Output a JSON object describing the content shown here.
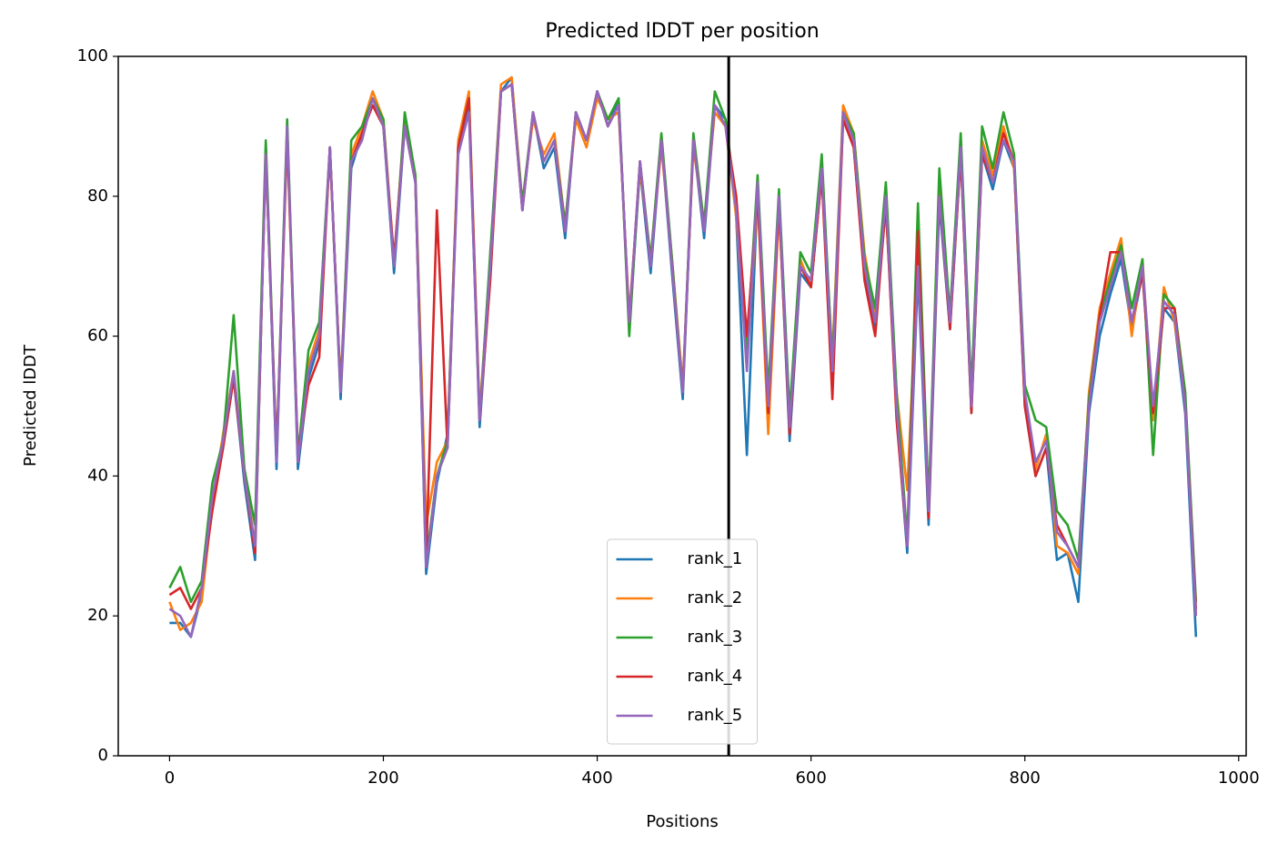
{
  "chart_data": {
    "type": "line",
    "title": "Predicted lDDT per position",
    "xlabel": "Positions",
    "ylabel": "Predicted lDDT",
    "xlim": [
      -48,
      1007
    ],
    "ylim": [
      0,
      100
    ],
    "xticks": [
      0,
      200,
      400,
      600,
      800,
      1000
    ],
    "yticks": [
      0,
      20,
      40,
      60,
      80,
      100
    ],
    "vline": 523,
    "vline_color": "#000000",
    "legend": "lower center",
    "x": [
      0,
      10,
      20,
      30,
      40,
      50,
      60,
      70,
      80,
      90,
      100,
      110,
      120,
      130,
      140,
      150,
      160,
      170,
      180,
      190,
      200,
      210,
      220,
      230,
      240,
      250,
      260,
      270,
      280,
      290,
      300,
      310,
      320,
      330,
      340,
      350,
      360,
      370,
      380,
      390,
      400,
      410,
      420,
      430,
      440,
      450,
      460,
      470,
      480,
      490,
      500,
      510,
      520,
      530,
      540,
      550,
      560,
      570,
      580,
      590,
      600,
      610,
      620,
      630,
      640,
      650,
      660,
      670,
      680,
      690,
      700,
      710,
      720,
      730,
      740,
      750,
      760,
      770,
      780,
      790,
      800,
      810,
      820,
      830,
      840,
      850,
      860,
      870,
      880,
      890,
      900,
      910,
      920,
      930,
      940,
      950,
      960
    ],
    "series": [
      {
        "name": "rank_1",
        "color": "#1f77b4",
        "values": [
          19,
          19,
          17,
          23,
          36,
          44,
          54,
          39,
          28,
          87,
          41,
          90,
          41,
          54,
          59,
          87,
          51,
          84,
          89,
          94,
          90,
          69,
          90,
          82,
          26,
          39,
          46,
          87,
          93,
          47,
          69,
          95,
          97,
          78,
          92,
          84,
          87,
          74,
          92,
          88,
          95,
          90,
          94,
          61,
          84,
          69,
          88,
          69,
          51,
          88,
          74,
          93,
          91,
          77,
          43,
          81,
          48,
          79,
          45,
          69,
          67,
          83,
          54,
          91,
          87,
          69,
          61,
          79,
          49,
          29,
          69,
          33,
          79,
          61,
          86,
          49,
          86,
          81,
          88,
          84,
          50,
          40,
          44,
          28,
          29,
          22,
          49,
          60,
          66,
          71,
          61,
          69,
          48,
          64,
          62,
          49,
          17
        ]
      },
      {
        "name": "rank_2",
        "color": "#ff7f0e",
        "values": [
          22,
          18,
          19,
          22,
          36,
          46,
          55,
          41,
          30,
          86,
          43,
          88,
          43,
          56,
          61,
          86,
          53,
          86,
          90,
          95,
          91,
          71,
          91,
          83,
          33,
          42,
          45,
          88,
          95,
          49,
          71,
          96,
          97,
          79,
          91,
          86,
          89,
          76,
          91,
          87,
          94,
          91,
          92,
          63,
          84,
          71,
          87,
          71,
          53,
          87,
          76,
          92,
          90,
          77,
          56,
          80,
          46,
          78,
          48,
          71,
          67,
          83,
          57,
          93,
          89,
          72,
          63,
          78,
          52,
          38,
          71,
          36,
          81,
          63,
          88,
          51,
          88,
          83,
          90,
          84,
          51,
          41,
          46,
          30,
          29,
          26,
          52,
          64,
          69,
          74,
          60,
          71,
          48,
          67,
          62,
          51,
          20
        ]
      },
      {
        "name": "rank_3",
        "color": "#2ca02c",
        "values": [
          24,
          27,
          22,
          25,
          39,
          45,
          63,
          41,
          33,
          88,
          43,
          91,
          43,
          58,
          62,
          87,
          52,
          88,
          90,
          94,
          91,
          70,
          92,
          83,
          28,
          40,
          45,
          87,
          94,
          48,
          72,
          95,
          96,
          79,
          92,
          85,
          88,
          76,
          92,
          88,
          95,
          91,
          94,
          60,
          85,
          71,
          89,
          71,
          52,
          89,
          76,
          95,
          91,
          79,
          58,
          83,
          52,
          81,
          49,
          72,
          69,
          86,
          56,
          92,
          89,
          71,
          64,
          82,
          52,
          31,
          79,
          36,
          84,
          63,
          89,
          52,
          90,
          84,
          92,
          86,
          53,
          48,
          47,
          35,
          33,
          28,
          51,
          63,
          68,
          73,
          64,
          71,
          43,
          66,
          64,
          52,
          22
        ]
      },
      {
        "name": "rank_4",
        "color": "#d62728",
        "values": [
          23,
          24,
          21,
          24,
          35,
          44,
          54,
          40,
          29,
          86,
          43,
          89,
          43,
          53,
          57,
          87,
          52,
          85,
          89,
          93,
          90,
          71,
          90,
          82,
          28,
          78,
          44,
          87,
          94,
          48,
          68,
          95,
          96,
          78,
          92,
          85,
          88,
          75,
          92,
          88,
          95,
          90,
          93,
          62,
          85,
          70,
          88,
          70,
          52,
          88,
          75,
          93,
          90,
          80,
          60,
          80,
          49,
          79,
          46,
          70,
          67,
          83,
          51,
          91,
          87,
          68,
          60,
          79,
          48,
          30,
          75,
          34,
          80,
          61,
          86,
          49,
          86,
          82,
          89,
          85,
          50,
          40,
          44,
          33,
          30,
          27,
          50,
          63,
          72,
          72,
          62,
          69,
          49,
          64,
          64,
          50,
          21
        ]
      },
      {
        "name": "rank_5",
        "color": "#9467bd",
        "values": [
          21,
          20,
          17,
          24,
          37,
          45,
          55,
          40,
          30,
          86,
          42,
          90,
          42,
          55,
          60,
          87,
          52,
          85,
          88,
          94,
          90,
          70,
          90,
          82,
          27,
          40,
          44,
          86,
          92,
          48,
          70,
          95,
          96,
          78,
          92,
          85,
          88,
          75,
          92,
          88,
          95,
          90,
          93,
          62,
          85,
          70,
          88,
          70,
          52,
          88,
          75,
          93,
          90,
          78,
          55,
          82,
          50,
          80,
          47,
          70,
          68,
          84,
          55,
          92,
          88,
          70,
          62,
          80,
          50,
          30,
          70,
          35,
          80,
          62,
          87,
          50,
          87,
          82,
          88,
          85,
          52,
          42,
          45,
          32,
          30,
          27,
          50,
          62,
          67,
          72,
          62,
          70,
          50,
          65,
          63,
          50,
          20
        ]
      }
    ]
  }
}
